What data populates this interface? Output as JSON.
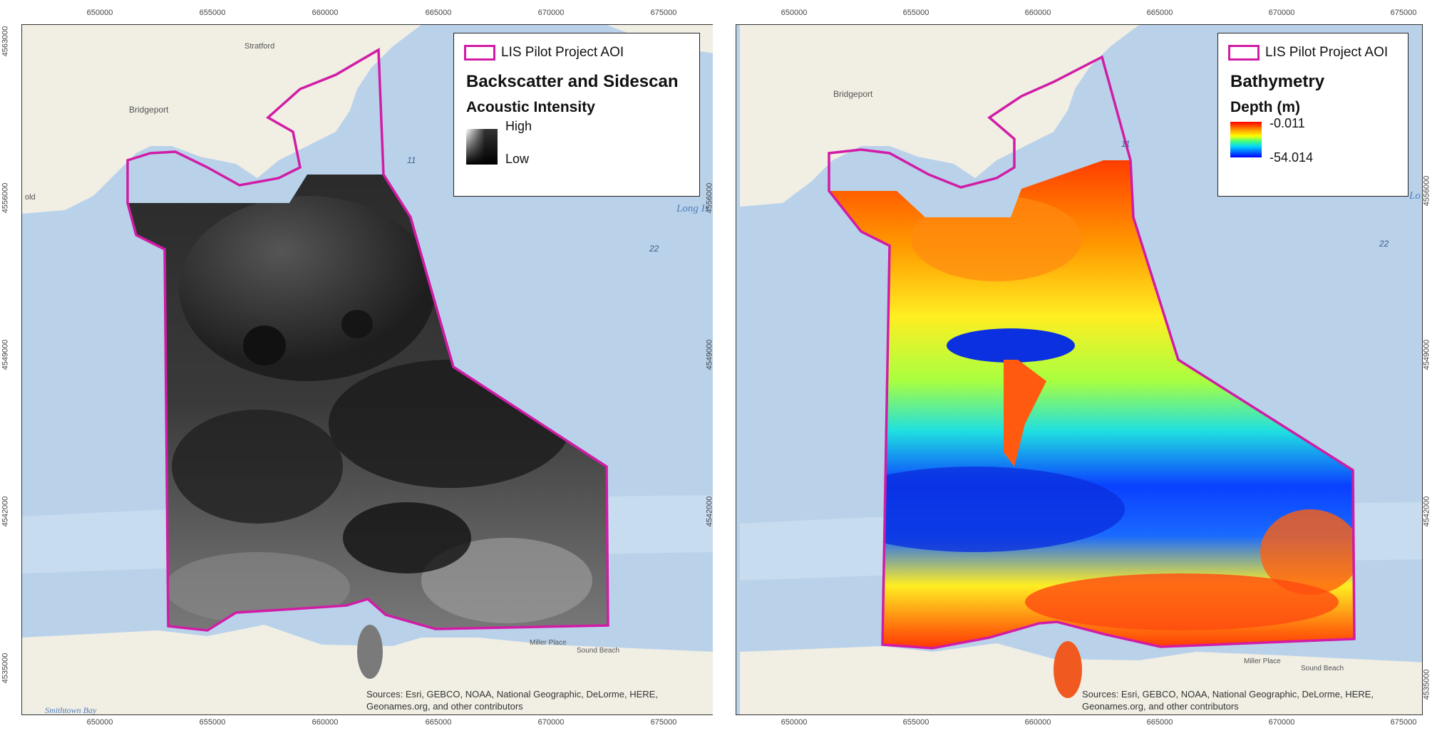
{
  "maps": [
    {
      "legend": {
        "aoi_label": "LIS Pilot Project AOI",
        "title": "Backscatter and Sidescan",
        "subtitle": "Acoustic Intensity",
        "ramp_high": "High",
        "ramp_low": "Low"
      },
      "attribution": [
        "Sources: Esri, GEBCO, NOAA, National Geographic, DeLorme, HERE,",
        "Geonames.org, and other contributors"
      ],
      "places": {
        "stratford": "Stratford",
        "bridgeport": "Bridgeport",
        "long_island": "Long Is",
        "smithtown": "Smithtown Bay",
        "miller": "Miller Place",
        "sound_beach": "Sound Beach",
        "depth11": "11",
        "depth22": "22",
        "old": "old"
      }
    },
    {
      "legend": {
        "aoi_label": "LIS Pilot Project AOI",
        "title": "Bathymetry",
        "subtitle": "Depth (m)",
        "ramp_high": "-0.011",
        "ramp_low": "-54.014"
      },
      "attribution": [
        "Sources: Esri, GEBCO, NOAA, National Geographic, DeLorme, HERE,",
        "Geonames.org, and other contributors"
      ],
      "places": {
        "bridgeport": "Bridgeport",
        "long_island": "Lo",
        "miller": "Miller Place",
        "sound_beach": "Sound Beach",
        "depth11": "11",
        "depth22": "22"
      }
    }
  ],
  "x_ticks": [
    "650000",
    "655000",
    "660000",
    "665000",
    "670000",
    "675000"
  ],
  "y_ticks": [
    "4563000",
    "4556000",
    "4549000",
    "4542000",
    "4535000"
  ],
  "colors": {
    "aoi": "#d11ca6",
    "water": "#b9d2ea",
    "land": "#f1eee4"
  }
}
